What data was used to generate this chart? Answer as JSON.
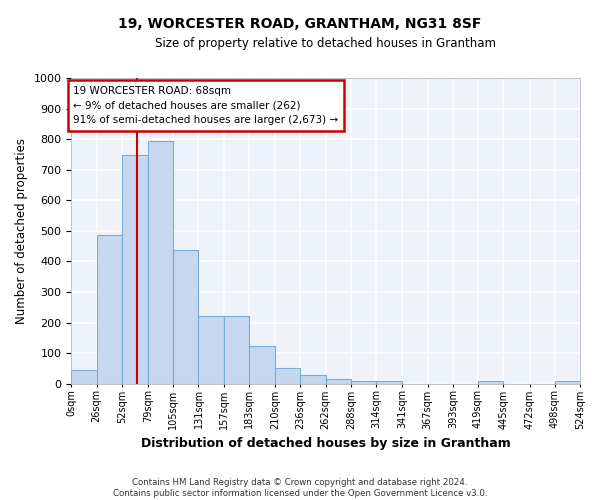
{
  "title": "19, WORCESTER ROAD, GRANTHAM, NG31 8SF",
  "subtitle": "Size of property relative to detached houses in Grantham",
  "xlabel": "Distribution of detached houses by size in Grantham",
  "ylabel": "Number of detached properties",
  "bar_color": "#c5d8f0",
  "bar_edge_color": "#7aadd4",
  "background_color": "#eef2fb",
  "grid_color": "#ffffff",
  "vline_x": 68,
  "vline_color": "#cc0000",
  "bin_edges": [
    0,
    26,
    52,
    79,
    105,
    131,
    157,
    183,
    210,
    236,
    262,
    288,
    314,
    341,
    367,
    393,
    419,
    445,
    472,
    498,
    524
  ],
  "bar_heights": [
    45,
    485,
    748,
    793,
    438,
    220,
    220,
    125,
    52,
    30,
    15,
    10,
    10,
    0,
    0,
    0,
    10,
    0,
    0,
    10
  ],
  "annotation_line1": "19 WORCESTER ROAD: 68sqm",
  "annotation_line2": "← 9% of detached houses are smaller (262)",
  "annotation_line3": "91% of semi-detached houses are larger (2,673) →",
  "annotation_box_color": "#ffffff",
  "annotation_border_color": "#cc0000",
  "ylim": [
    0,
    1000
  ],
  "yticks": [
    0,
    100,
    200,
    300,
    400,
    500,
    600,
    700,
    800,
    900,
    1000
  ],
  "footer_line1": "Contains HM Land Registry data © Crown copyright and database right 2024.",
  "footer_line2": "Contains public sector information licensed under the Open Government Licence v3.0."
}
